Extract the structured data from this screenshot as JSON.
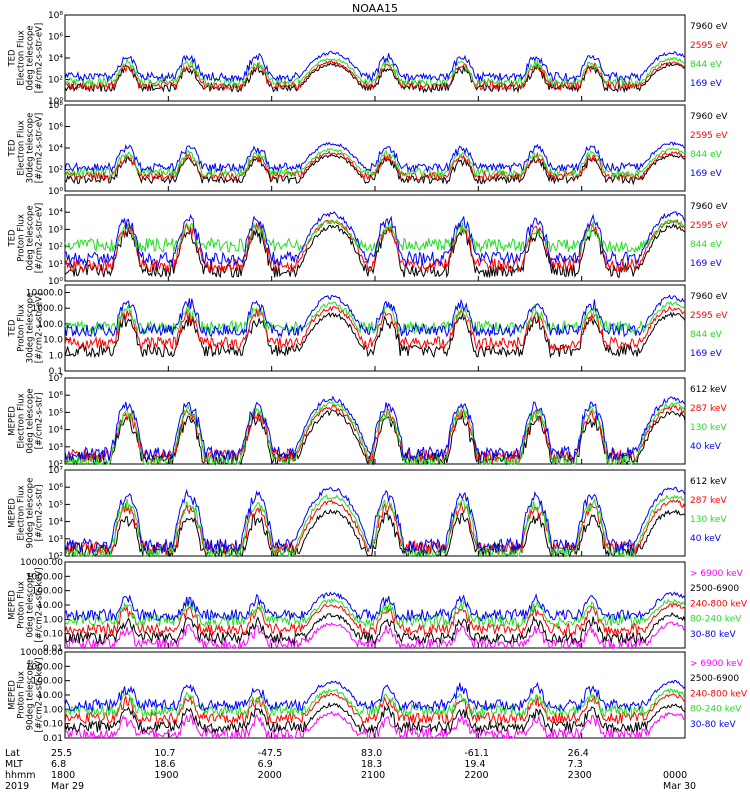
{
  "title": "NOAA15",
  "colors": {
    "black": "#000000",
    "red": "#ff0000",
    "green": "#22dd22",
    "blue": "#0000ff",
    "magenta": "#ff00ff"
  },
  "chart_data": [
    {
      "type": "line",
      "panel": 1,
      "log": true,
      "ylim": [
        1,
        100000000
      ],
      "ylabel_lines": [
        "TED",
        "Electron Flux",
        "0deg telescope",
        "[#/cm2-s-str-eV]"
      ],
      "y_ticks": [
        {
          "v": 1,
          "label": "10⁰"
        },
        {
          "v": 100,
          "label": "10²"
        },
        {
          "v": 10000,
          "label": "10⁴"
        },
        {
          "v": 1000000,
          "label": "10⁶"
        },
        {
          "v": 100000000,
          "label": "10⁸"
        }
      ],
      "series": [
        {
          "name": "7960 eV",
          "color": "#000000",
          "base": 18,
          "pk": 2500
        },
        {
          "name": "2595 eV",
          "color": "#ff0000",
          "base": 30,
          "pk": 4000
        },
        {
          "name": "844 eV",
          "color": "#22dd22",
          "base": 60,
          "pk": 8000
        },
        {
          "name": "169 eV",
          "color": "#0000ff",
          "base": 180,
          "pk": 30000
        }
      ]
    },
    {
      "type": "line",
      "panel": 2,
      "log": true,
      "ylim": [
        1,
        100000000
      ],
      "ylabel_lines": [
        "TED",
        "Electron Flux",
        "30deg telescope",
        "[#/cm2-s-str-eV]"
      ],
      "y_ticks": [
        {
          "v": 1,
          "label": "10⁰"
        },
        {
          "v": 100,
          "label": "10²"
        },
        {
          "v": 10000,
          "label": "10⁴"
        },
        {
          "v": 1000000,
          "label": "10⁶"
        },
        {
          "v": 100000000,
          "label": "10⁸"
        }
      ],
      "series": [
        {
          "name": "7960 eV",
          "color": "#000000",
          "base": 12,
          "pk": 2000
        },
        {
          "name": "2595 eV",
          "color": "#ff0000",
          "base": 25,
          "pk": 3500
        },
        {
          "name": "844 eV",
          "color": "#22dd22",
          "base": 50,
          "pk": 7000
        },
        {
          "name": "169 eV",
          "color": "#0000ff",
          "base": 160,
          "pk": 25000
        }
      ]
    },
    {
      "type": "line",
      "panel": 3,
      "log": true,
      "ylim": [
        1,
        100000
      ],
      "ylabel_lines": [
        "TED",
        "Proton Flux",
        "0deg telescope",
        "[#/cm2-s-str-eV]"
      ],
      "y_ticks": [
        {
          "v": 1,
          "label": "10⁰"
        },
        {
          "v": 10,
          "label": "10¹"
        },
        {
          "v": 100,
          "label": "10²"
        },
        {
          "v": 1000,
          "label": "10³"
        },
        {
          "v": 10000,
          "label": "10⁴"
        }
      ],
      "series": [
        {
          "name": "7960 eV",
          "color": "#000000",
          "base": 4,
          "pk": 1500
        },
        {
          "name": "2595 eV",
          "color": "#ff0000",
          "base": 8,
          "pk": 3000
        },
        {
          "name": "844 eV",
          "color": "#22dd22",
          "base": 120,
          "pk": 3000
        },
        {
          "name": "169 eV",
          "color": "#0000ff",
          "base": 20,
          "pk": 8000
        }
      ]
    },
    {
      "type": "line",
      "panel": 4,
      "log": true,
      "ylim": [
        0.1,
        30000
      ],
      "ylabel_lines": [
        "TED",
        "Proton Flux",
        "30deg telescope",
        "[#/cm2-s-str-eV]"
      ],
      "y_ticks": [
        {
          "v": 0.1,
          "label": "0.1"
        },
        {
          "v": 1,
          "label": "1.0"
        },
        {
          "v": 10,
          "label": "10.0"
        },
        {
          "v": 100,
          "label": "100.0"
        },
        {
          "v": 1000,
          "label": "1000.0"
        },
        {
          "v": 10000,
          "label": "10000.0"
        }
      ],
      "series": [
        {
          "name": "7960 eV",
          "color": "#000000",
          "base": 2,
          "pk": 400
        },
        {
          "name": "2595 eV",
          "color": "#ff0000",
          "base": 6,
          "pk": 1000
        },
        {
          "name": "844 eV",
          "color": "#22dd22",
          "base": 60,
          "pk": 2000
        },
        {
          "name": "169 eV",
          "color": "#0000ff",
          "base": 40,
          "pk": 5000
        }
      ]
    },
    {
      "type": "line",
      "panel": 5,
      "log": true,
      "ylim": [
        100,
        10000000
      ],
      "ylabel_lines": [
        "MEPED",
        "Electron Flux",
        "0deg telescope",
        "[#/cm2-s-str]"
      ],
      "y_ticks": [
        {
          "v": 100,
          "label": "10²"
        },
        {
          "v": 1000,
          "label": "10³"
        },
        {
          "v": 10000,
          "label": "10⁴"
        },
        {
          "v": 100000,
          "label": "10⁵"
        },
        {
          "v": 1000000,
          "label": "10⁶"
        },
        {
          "v": 10000000,
          "label": "10⁷"
        }
      ],
      "series": [
        {
          "name": "612 keV",
          "color": "#000000",
          "base": 200,
          "pk": 100000
        },
        {
          "name": "287 keV",
          "color": "#ff0000",
          "base": 300,
          "pk": 200000
        },
        {
          "name": "130 keV",
          "color": "#22dd22",
          "base": 150,
          "pk": 300000
        },
        {
          "name": "40 keV",
          "color": "#0000ff",
          "base": 400,
          "pk": 600000
        }
      ]
    },
    {
      "type": "line",
      "panel": 6,
      "log": true,
      "ylim": [
        100,
        10000000
      ],
      "ylabel_lines": [
        "MEPED",
        "Electron Flux",
        "90deg telescope",
        "[#/cm2-s-str]"
      ],
      "y_ticks": [
        {
          "v": 100,
          "label": "10²"
        },
        {
          "v": 1000,
          "label": "10³"
        },
        {
          "v": 10000,
          "label": "10⁴"
        },
        {
          "v": 100000,
          "label": "10⁵"
        },
        {
          "v": 1000000,
          "label": "10⁶"
        },
        {
          "v": 10000000,
          "label": "10⁷"
        }
      ],
      "series": [
        {
          "name": "612 keV",
          "color": "#000000",
          "base": 200,
          "pk": 40000
        },
        {
          "name": "287 keV",
          "color": "#ff0000",
          "base": 300,
          "pk": 150000
        },
        {
          "name": "130 keV",
          "color": "#22dd22",
          "base": 150,
          "pk": 300000
        },
        {
          "name": "40 keV",
          "color": "#0000ff",
          "base": 400,
          "pk": 800000
        }
      ]
    },
    {
      "type": "line",
      "panel": 7,
      "log": true,
      "ylim": [
        0.01,
        10000
      ],
      "ylabel_lines": [
        "MEPED",
        "Proton Flux",
        "0deg telescope",
        "[#/cm2-s-str-keV]"
      ],
      "y_ticks": [
        {
          "v": 0.01,
          "label": "0.01"
        },
        {
          "v": 0.1,
          "label": "0.10"
        },
        {
          "v": 1,
          "label": "1.00"
        },
        {
          "v": 10,
          "label": "10.00"
        },
        {
          "v": 100,
          "label": "100.00"
        },
        {
          "v": 1000,
          "label": "1000.00"
        },
        {
          "v": 10000,
          "label": "10000.00"
        }
      ],
      "series": [
        {
          "name": "> 6900 keV",
          "color": "#ff00ff",
          "base": 0.02,
          "pk": 0.5
        },
        {
          "name": "2500-6900",
          "color": "#000000",
          "base": 0.05,
          "pk": 2
        },
        {
          "name": "240-800 keV",
          "color": "#ff0000",
          "base": 0.2,
          "pk": 10
        },
        {
          "name": "80-240 keV",
          "color": "#22dd22",
          "base": 0.8,
          "pk": 20
        },
        {
          "name": "30-80 keV",
          "color": "#0000ff",
          "base": 2,
          "pk": 60
        }
      ]
    },
    {
      "type": "line",
      "panel": 8,
      "log": true,
      "ylim": [
        0.01,
        10000
      ],
      "ylabel_lines": [
        "MEPED",
        "Proton Flux",
        "90deg telescope",
        "[#/cm2-s-str-keV]"
      ],
      "y_ticks": [
        {
          "v": 0.01,
          "label": "0.01"
        },
        {
          "v": 0.1,
          "label": "0.10"
        },
        {
          "v": 1,
          "label": "1.00"
        },
        {
          "v": 10,
          "label": "10.00"
        },
        {
          "v": 100,
          "label": "100.00"
        },
        {
          "v": 1000,
          "label": "1000.00"
        },
        {
          "v": 10000,
          "label": "10000.00"
        }
      ],
      "series": [
        {
          "name": "> 6900 keV",
          "color": "#ff00ff",
          "base": 0.02,
          "pk": 0.5
        },
        {
          "name": "2500-6900",
          "color": "#000000",
          "base": 0.06,
          "pk": 2
        },
        {
          "name": "240-800 keV",
          "color": "#ff0000",
          "base": 0.25,
          "pk": 10
        },
        {
          "name": "80-240 keV",
          "color": "#22dd22",
          "base": 0.8,
          "pk": 20
        },
        {
          "name": "30-80 keV",
          "color": "#0000ff",
          "base": 2,
          "pk": 80
        }
      ]
    }
  ],
  "x_axis": {
    "row_labels": [
      "Lat",
      "MLT",
      "hhmm",
      "2019"
    ],
    "columns": [
      {
        "lat": "25.5",
        "mlt": "6.8",
        "time": "1800",
        "date": "Mar 29"
      },
      {
        "lat": "10.7",
        "mlt": "18.6",
        "time": "1900",
        "date": ""
      },
      {
        "lat": "-47.5",
        "mlt": "6.9",
        "time": "2000",
        "date": ""
      },
      {
        "lat": "83.0",
        "mlt": "18.3",
        "time": "2100",
        "date": ""
      },
      {
        "lat": "-61.1",
        "mlt": "19.4",
        "time": "2200",
        "date": ""
      },
      {
        "lat": "26.4",
        "mlt": "7.3",
        "time": "2300",
        "date": ""
      },
      {
        "lat": "",
        "mlt": "",
        "time": "0000",
        "date": "Mar 30"
      }
    ]
  }
}
